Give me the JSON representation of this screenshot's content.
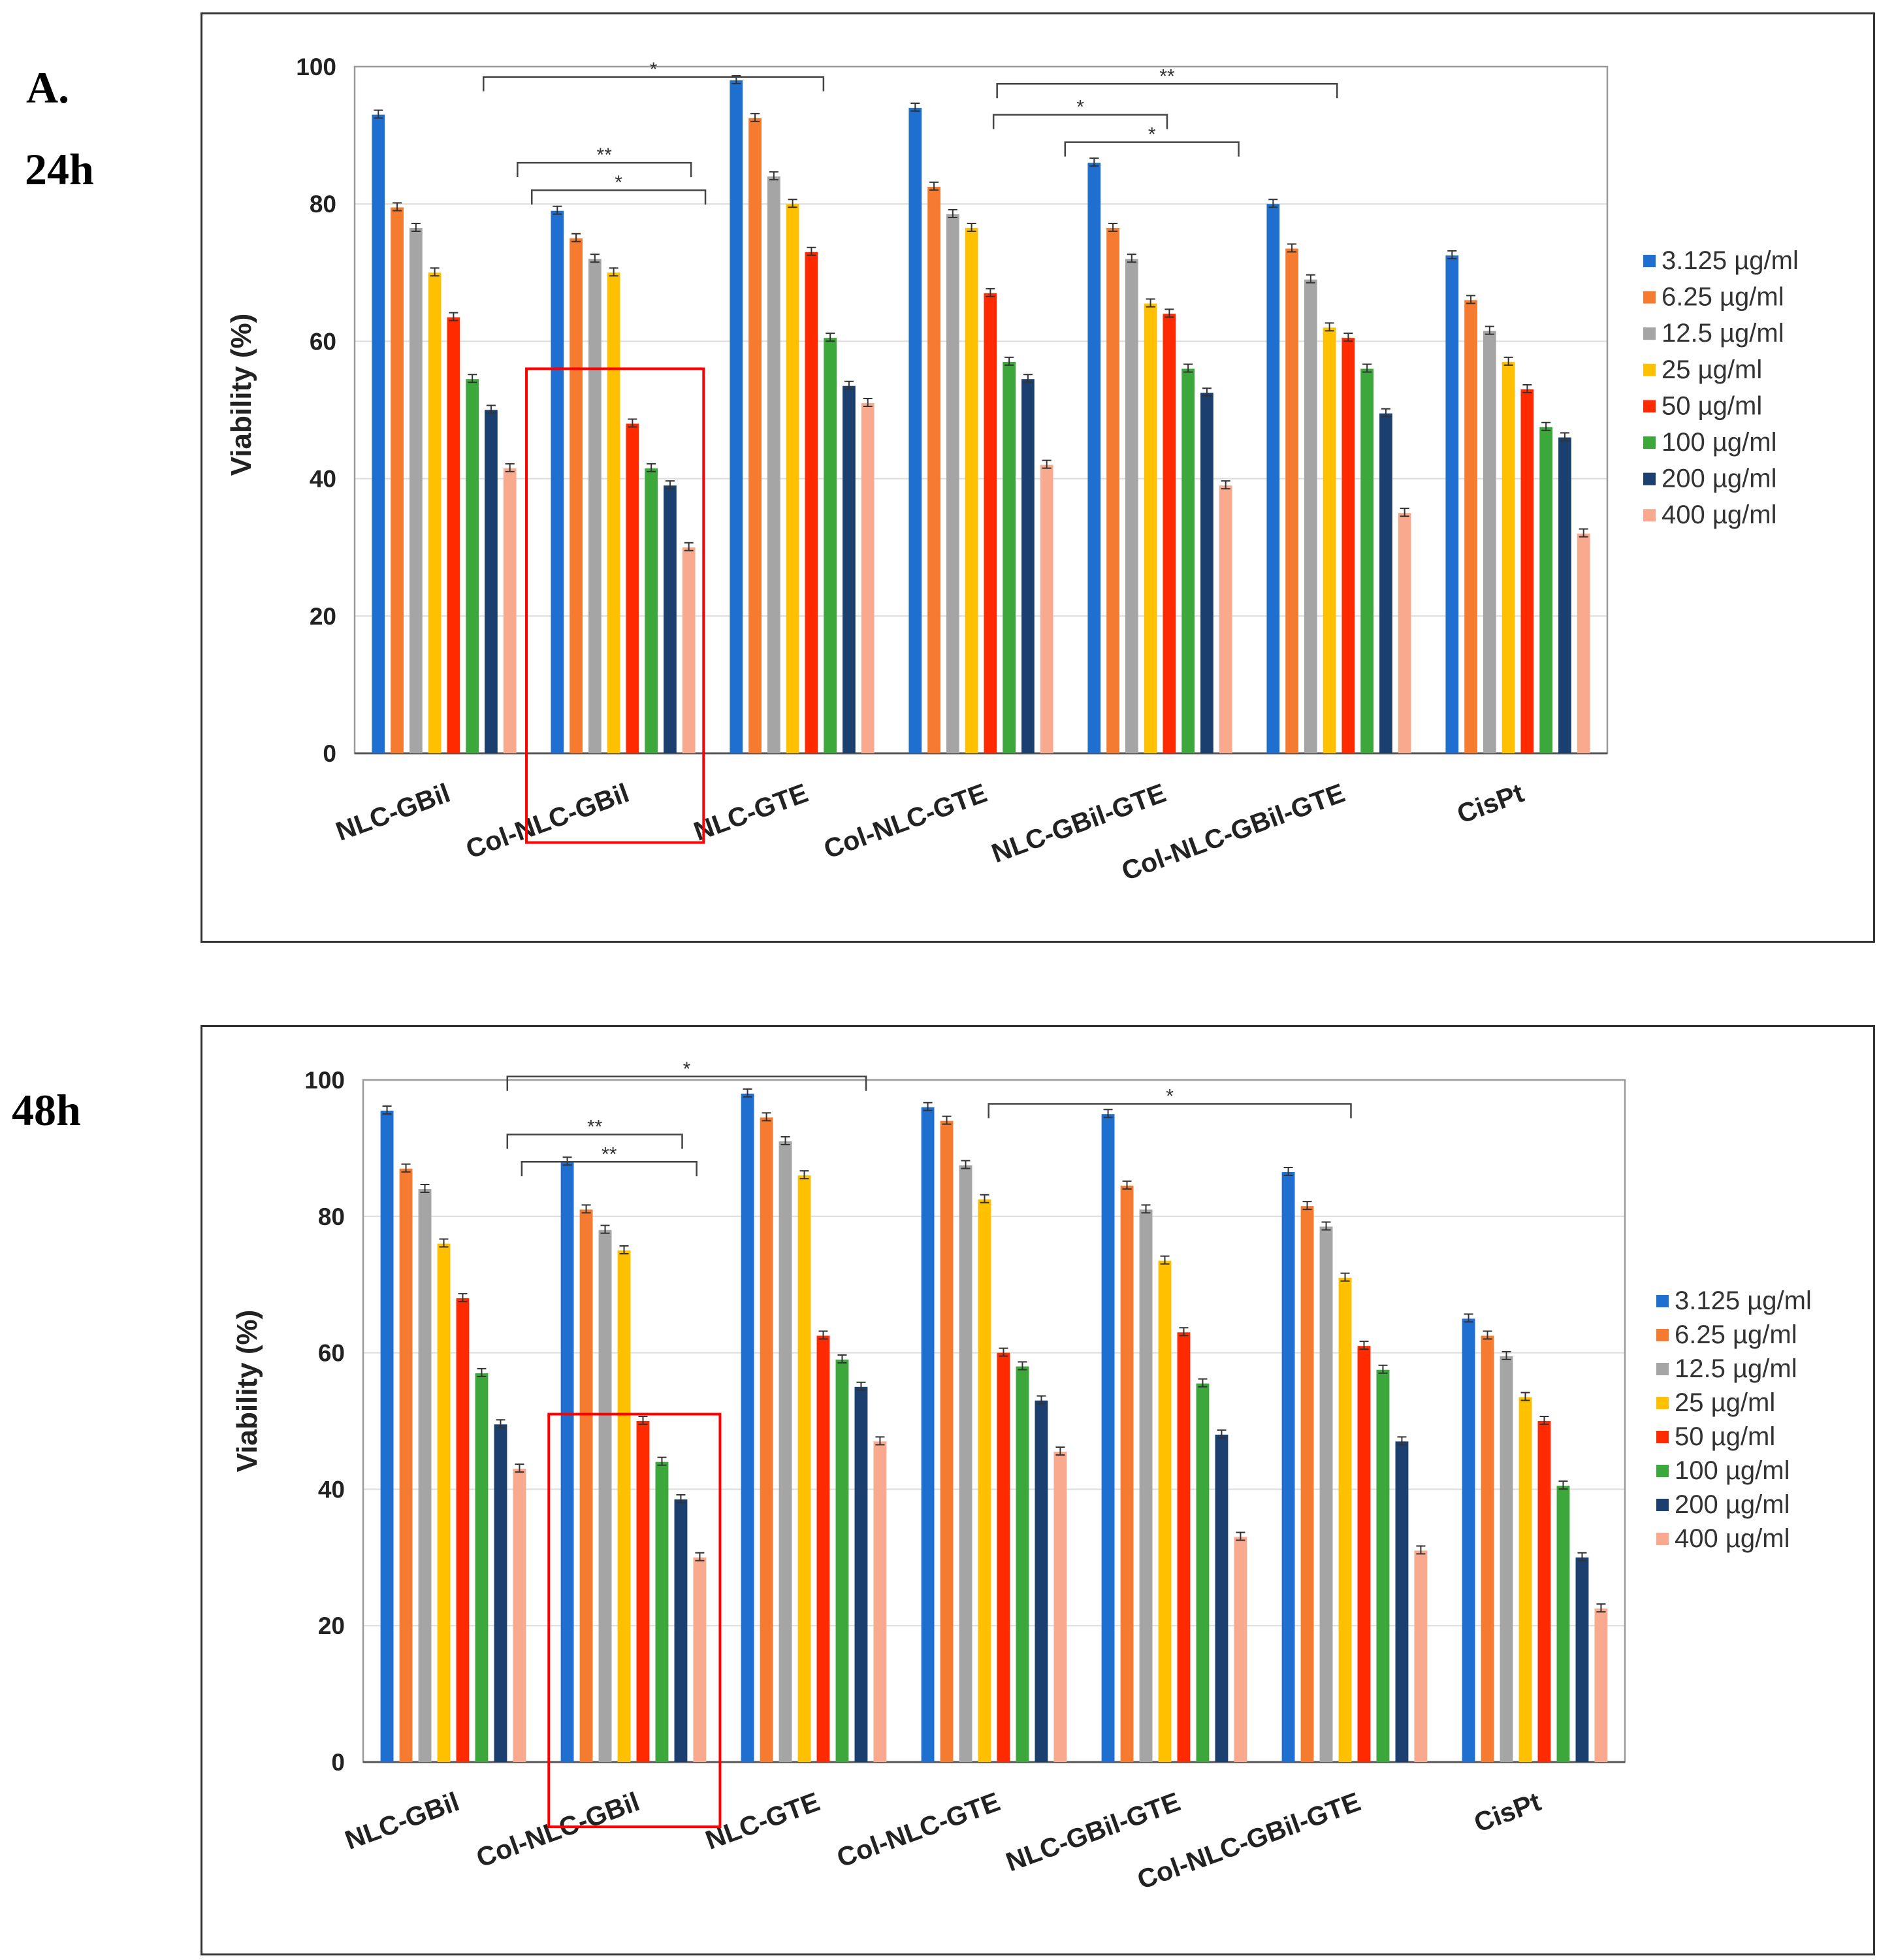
{
  "panel_labels": {
    "a": "A.",
    "h24": "24h",
    "h48": "48h"
  },
  "colors": [
    "#1f6fd1",
    "#f47b30",
    "#a5a5a5",
    "#ffc000",
    "#ff2a00",
    "#3ca83c",
    "#1b3f6e",
    "#f8a98e"
  ],
  "highlight_color": "#ff0000",
  "chart_data": [
    {
      "type": "bar",
      "title": "24h",
      "xlabel": "",
      "ylabel": "Viability  (%)",
      "ylim": [
        0,
        100
      ],
      "yticks": [
        "0",
        "20",
        "40",
        "60",
        "80",
        "100"
      ],
      "grid": true,
      "legend_position": "right",
      "categories": [
        "NLC-GBil",
        "Col-NLC-GBil",
        "NLC-GTE",
        "Col-NLC-GTE",
        "NLC-GBil-GTE",
        "Col-NLC-GBil-GTE",
        "CisPt"
      ],
      "series": [
        {
          "name": "3.125 µg/ml",
          "values": [
            93,
            79,
            98,
            94,
            86,
            80,
            72.5
          ]
        },
        {
          "name": "6.25 µg/ml",
          "values": [
            79.5,
            75,
            92.5,
            82.5,
            76.5,
            73.5,
            66
          ]
        },
        {
          "name": "12.5 µg/ml",
          "values": [
            76.5,
            72,
            84,
            78.5,
            72,
            69,
            61.5
          ]
        },
        {
          "name": "25 µg/ml",
          "values": [
            70,
            70,
            80,
            76.5,
            65.5,
            62,
            57
          ]
        },
        {
          "name": "50 µg/ml",
          "values": [
            63.5,
            48,
            73,
            67,
            64,
            60.5,
            53
          ]
        },
        {
          "name": "100 µg/ml",
          "values": [
            54.5,
            41.5,
            60.5,
            57,
            56,
            56,
            47.5
          ]
        },
        {
          "name": "200 µg/ml",
          "values": [
            50,
            39,
            53.5,
            54.5,
            52.5,
            49.5,
            46
          ]
        },
        {
          "name": "400 µg/ml",
          "values": [
            41.5,
            30,
            51,
            42,
            39,
            35,
            32
          ]
        }
      ],
      "significance": [
        {
          "label": "*",
          "from": 0.22,
          "to": 2.12,
          "level": 98.5
        },
        {
          "label": "**",
          "from": 0.41,
          "to": 1.38,
          "level": 86
        },
        {
          "label": "*",
          "from": 0.49,
          "to": 1.46,
          "level": 82
        },
        {
          "label": "**",
          "from": 3.09,
          "to": 4.99,
          "level": 97.5
        },
        {
          "label": "*",
          "from": 3.07,
          "to": 4.04,
          "level": 93
        },
        {
          "label": "*",
          "from": 3.47,
          "to": 4.44,
          "level": 89
        }
      ],
      "highlight": {
        "from": 0.46,
        "to": 1.45,
        "top": 56,
        "bottom": -13
      }
    },
    {
      "type": "bar",
      "title": "48h",
      "xlabel": "",
      "ylabel": "Viability  (%)",
      "ylim": [
        0,
        100
      ],
      "yticks": [
        "0",
        "20",
        "40",
        "60",
        "80",
        "100"
      ],
      "grid": true,
      "legend_position": "right",
      "categories": [
        "NLC-GBil",
        "Col-NLC-GBil",
        "NLC-GTE",
        "Col-NLC-GTE",
        "NLC-GBil-GTE",
        "Col-NLC-GBil-GTE",
        "CisPt"
      ],
      "series": [
        {
          "name": "3.125 µg/ml",
          "values": [
            95.5,
            88,
            98,
            96,
            95,
            86.5,
            65
          ]
        },
        {
          "name": "6.25 µg/ml",
          "values": [
            87,
            81,
            94.5,
            94,
            84.5,
            81.5,
            62.5
          ]
        },
        {
          "name": "12.5 µg/ml",
          "values": [
            84,
            78,
            91,
            87.5,
            81,
            78.5,
            59.5
          ]
        },
        {
          "name": "25 µg/ml",
          "values": [
            76,
            75,
            86,
            82.5,
            73.5,
            71,
            53.5
          ]
        },
        {
          "name": "50 µg/ml",
          "values": [
            68,
            50,
            62.5,
            60,
            63,
            61,
            50
          ]
        },
        {
          "name": "100 µg/ml",
          "values": [
            57,
            44,
            59,
            58,
            55.5,
            57.5,
            40.5
          ]
        },
        {
          "name": "200 µg/ml",
          "values": [
            49.5,
            38.5,
            55,
            53,
            48,
            47,
            30
          ]
        },
        {
          "name": "400 µg/ml",
          "values": [
            43,
            30,
            47,
            45.5,
            33,
            31,
            22.5
          ]
        }
      ],
      "significance": [
        {
          "label": "*",
          "from": 0.3,
          "to": 2.29,
          "level": 100.5
        },
        {
          "label": "**",
          "from": 0.3,
          "to": 1.27,
          "level": 92
        },
        {
          "label": "**",
          "from": 0.38,
          "to": 1.35,
          "level": 88
        },
        {
          "label": "*",
          "from": 2.97,
          "to": 4.98,
          "level": 96.5
        }
      ],
      "highlight": {
        "from": 0.53,
        "to": 1.48,
        "top": 51,
        "bottom": -9.5
      }
    }
  ]
}
